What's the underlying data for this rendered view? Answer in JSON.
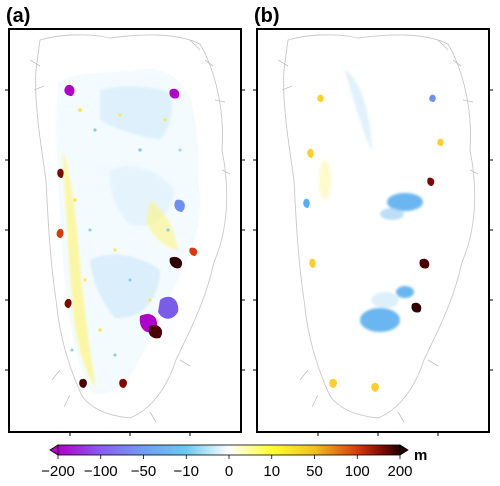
{
  "panels": [
    {
      "label": "(a)"
    },
    {
      "label": "(b)"
    }
  ],
  "colorbar": {
    "unit": "m",
    "ticks": [
      "−200",
      "−100",
      "−50",
      "−10",
      "0",
      "10",
      "50",
      "100",
      "200"
    ],
    "colors": [
      "#b000c8",
      "#8a5cf0",
      "#6f9ef2",
      "#6cc8f2",
      "#ffffff",
      "#ffff30",
      "#f0c020",
      "#d63b0c",
      "#7a0a00",
      "#200000"
    ]
  }
}
